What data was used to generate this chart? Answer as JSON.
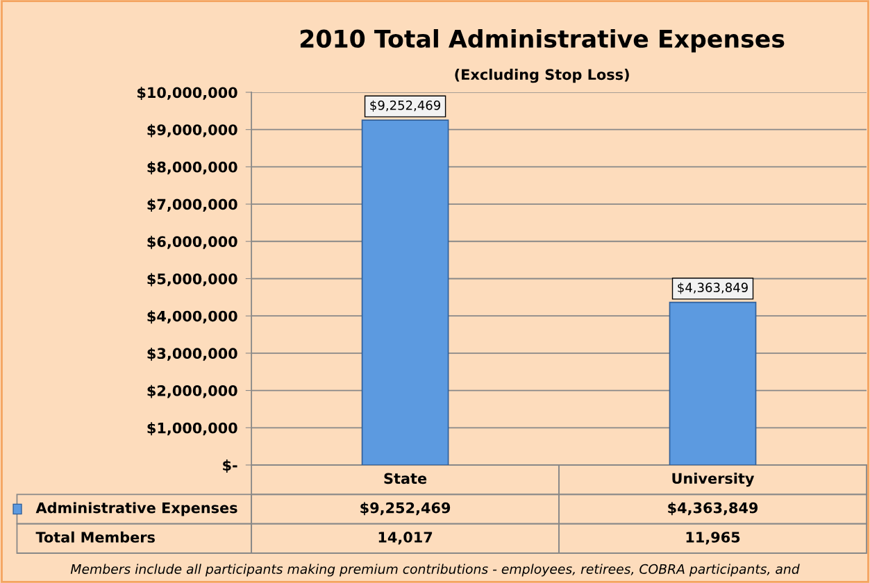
{
  "chart_data": {
    "type": "bar",
    "title": "2010 Total Administrative Expenses",
    "subtitle": "(Excluding Stop Loss)",
    "categories": [
      "State",
      "University"
    ],
    "series": [
      {
        "name": "Administrative Expenses",
        "color": "#5c9ae0",
        "values": [
          9252469,
          4363849
        ],
        "value_labels": [
          "$9,252,469",
          "$4,363,849"
        ]
      }
    ],
    "data_labels": true,
    "ylim": [
      0,
      10000000
    ],
    "yticks": [
      {
        "value": 0,
        "label": "$-"
      },
      {
        "value": 1000000,
        "label": "$1,000,000"
      },
      {
        "value": 2000000,
        "label": "$2,000,000"
      },
      {
        "value": 3000000,
        "label": "$3,000,000"
      },
      {
        "value": 4000000,
        "label": "$4,000,000"
      },
      {
        "value": 5000000,
        "label": "$5,000,000"
      },
      {
        "value": 6000000,
        "label": "$6,000,000"
      },
      {
        "value": 7000000,
        "label": "$7,000,000"
      },
      {
        "value": 8000000,
        "label": "$8,000,000"
      },
      {
        "value": 9000000,
        "label": "$9,000,000"
      },
      {
        "value": 10000000,
        "label": "$10,000,000"
      }
    ],
    "grid": "y",
    "annotations": [
      "Total Members",
      "14,017",
      "11,965",
      "Members include all participants making premium contributions - employees, retirees, COBRA participants, and"
    ]
  }
}
